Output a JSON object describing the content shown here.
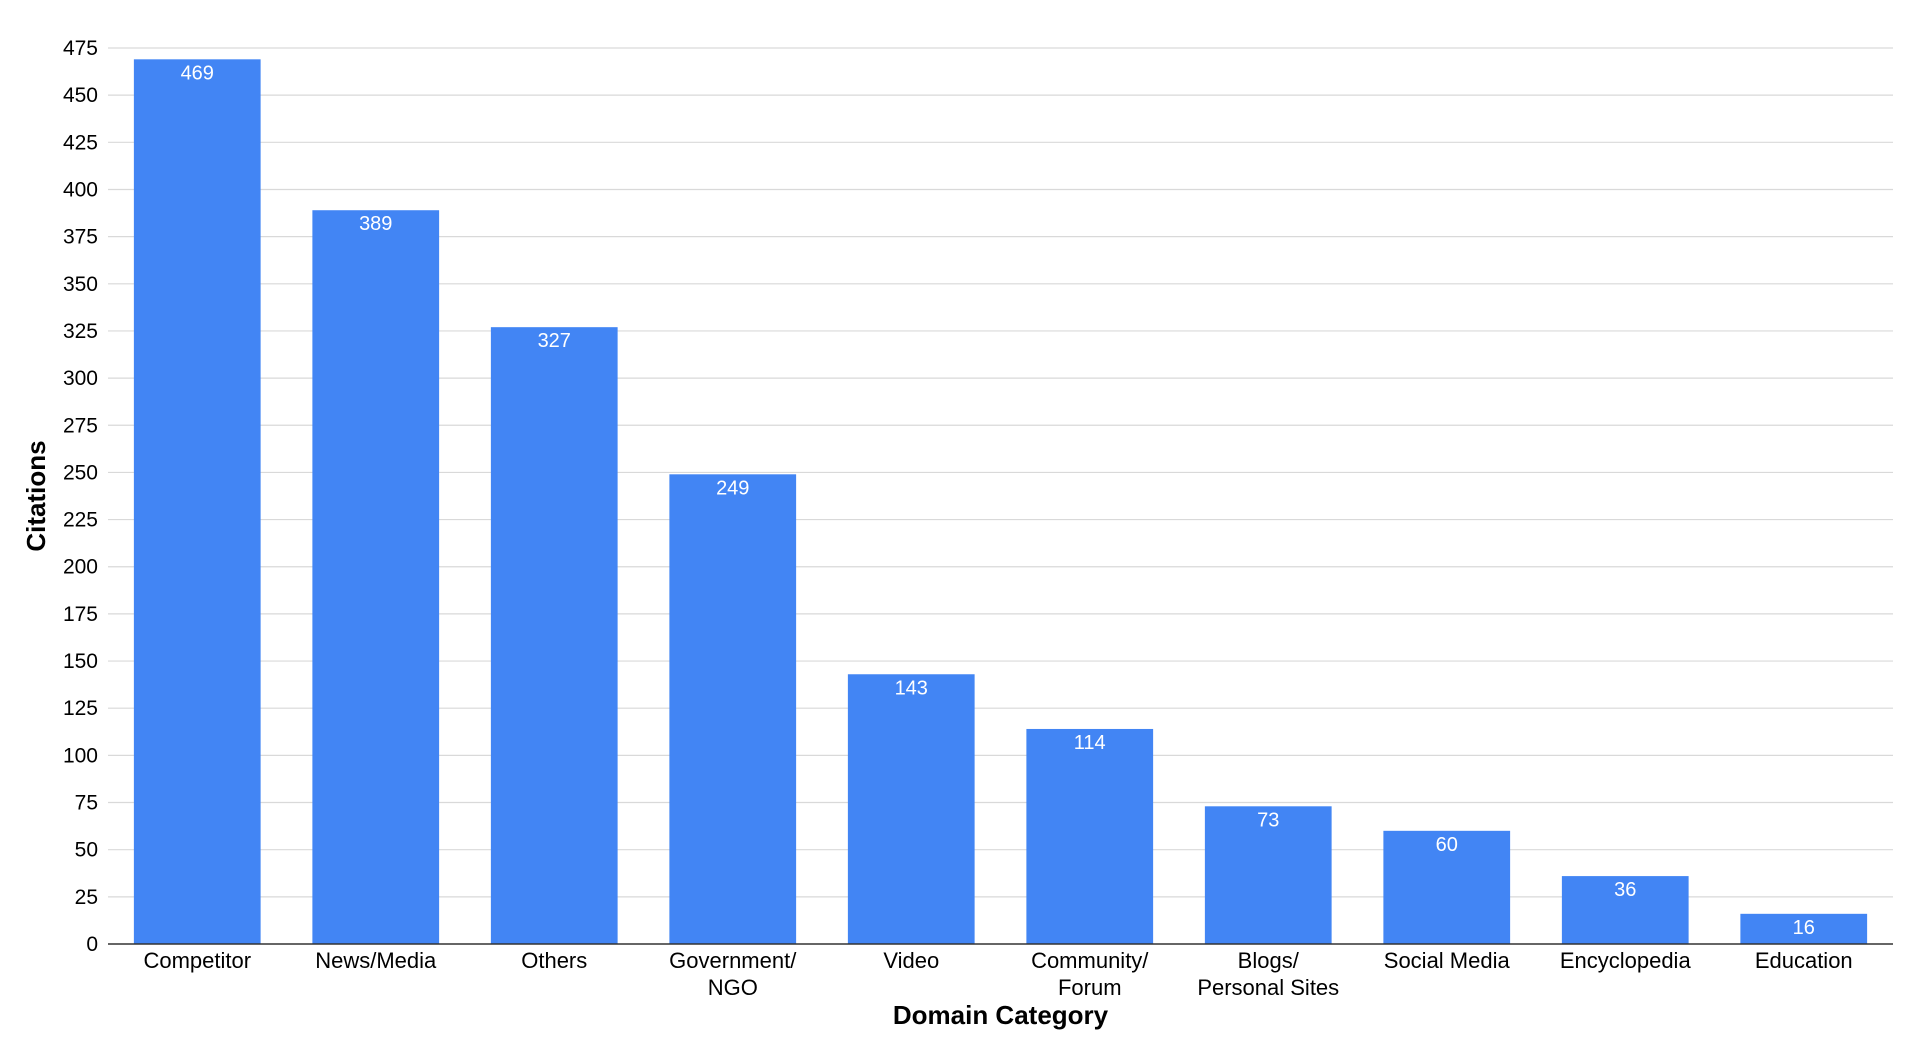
{
  "chart_data": {
    "type": "bar",
    "categories": [
      "Competitor",
      "News/Media",
      "Others",
      "Government/\nNGO",
      "Video",
      "Community/\nForum",
      "Blogs/\nPersonal Sites",
      "Social Media",
      "Encyclopedia",
      "Education"
    ],
    "values": [
      469,
      389,
      327,
      249,
      143,
      114,
      73,
      60,
      36,
      16
    ],
    "data_labels": [
      "469",
      "389",
      "327",
      "249",
      "143",
      "114",
      "73",
      "60",
      "36",
      "16"
    ],
    "title": "",
    "xlabel": "Domain Category",
    "ylabel": "Citations",
    "ylim": [
      0,
      475
    ],
    "yticks": [
      0,
      25,
      50,
      75,
      100,
      125,
      150,
      175,
      200,
      225,
      250,
      275,
      300,
      325,
      350,
      375,
      400,
      425,
      450,
      475
    ],
    "grid": true,
    "legend": "none",
    "bar_color": "#4285f4",
    "gridline_color": "#d9d9d9"
  }
}
